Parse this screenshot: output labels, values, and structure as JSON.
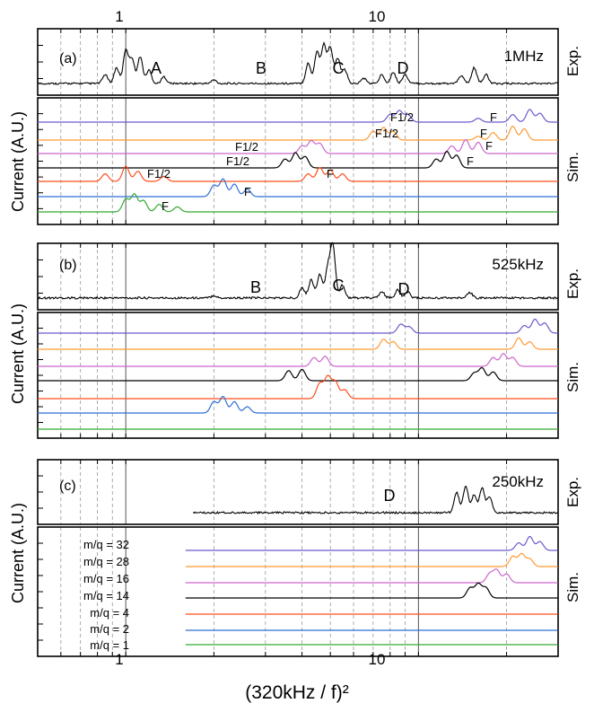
{
  "figure": {
    "xlabel": "(320kHz / f)²",
    "ylabel": "Current (A.U.)",
    "x_ticks_top": [
      "1",
      "10"
    ],
    "x_ticks_bottom": [
      "1",
      "10"
    ],
    "exp_label": "Exp.",
    "sim_label": "Sim.",
    "colors": {
      "m32": "#6a5acd",
      "m28": "#ff9933",
      "m16": "#cc66cc",
      "m14": "#000000",
      "m4": "#ff4d1a",
      "m2": "#2e6fd6",
      "m1": "#33aa33"
    }
  },
  "chart_data": [
    {
      "type": "line",
      "panel": "(a)",
      "frequency": "1MHz",
      "xscale": "log",
      "xlim": [
        0.5,
        30
      ],
      "peak_labels": [
        "A",
        "B",
        "C",
        "D"
      ],
      "series": [
        {
          "name": "Exp.",
          "peaks": [
            [
              0.85,
              0.2
            ],
            [
              0.93,
              0.35
            ],
            [
              1.0,
              0.75
            ],
            [
              1.05,
              0.55
            ],
            [
              1.12,
              0.6
            ],
            [
              1.2,
              0.3
            ],
            [
              1.35,
              0.15
            ],
            [
              2.0,
              0.08
            ],
            [
              4.2,
              0.45
            ],
            [
              4.5,
              0.7
            ],
            [
              4.75,
              0.85
            ],
            [
              5.0,
              0.8
            ],
            [
              5.3,
              0.55
            ],
            [
              5.6,
              0.3
            ],
            [
              6.5,
              0.12
            ],
            [
              7.5,
              0.2
            ],
            [
              8.2,
              0.25
            ],
            [
              9.0,
              0.2
            ],
            [
              14,
              0.18
            ],
            [
              15.5,
              0.35
            ],
            [
              17,
              0.2
            ]
          ]
        },
        {
          "name": "m/q = 32",
          "peaks": [
            [
              8.0,
              0.3
            ],
            [
              8.6,
              0.45
            ],
            [
              9.2,
              0.3
            ],
            [
              16,
              0.15
            ],
            [
              21,
              0.3
            ],
            [
              24,
              0.5
            ],
            [
              26,
              0.35
            ]
          ]
        },
        {
          "name": "m/q = 28",
          "peaks": [
            [
              7.0,
              0.35
            ],
            [
              7.6,
              0.5
            ],
            [
              8.2,
              0.35
            ],
            [
              16,
              0.15
            ],
            [
              18,
              0.3
            ],
            [
              21,
              0.55
            ],
            [
              23,
              0.45
            ]
          ]
        },
        {
          "name": "m/q = 16",
          "peaks": [
            [
              4.0,
              0.3
            ],
            [
              4.3,
              0.5
            ],
            [
              4.6,
              0.4
            ],
            [
              13,
              0.3
            ],
            [
              14.5,
              0.55
            ],
            [
              16,
              0.45
            ]
          ]
        },
        {
          "name": "m/q = 14",
          "peaks": [
            [
              3.5,
              0.35
            ],
            [
              3.8,
              0.6
            ],
            [
              4.1,
              0.45
            ],
            [
              11.5,
              0.35
            ],
            [
              12.5,
              0.65
            ],
            [
              13.5,
              0.5
            ]
          ]
        },
        {
          "name": "m/q = 4",
          "peaks": [
            [
              0.85,
              0.3
            ],
            [
              1.0,
              0.6
            ],
            [
              1.1,
              0.4
            ],
            [
              1.35,
              0.2
            ],
            [
              4.2,
              0.3
            ],
            [
              4.6,
              0.55
            ],
            [
              5.0,
              0.45
            ],
            [
              5.5,
              0.3
            ]
          ]
        },
        {
          "name": "m/q = 2",
          "peaks": [
            [
              2.0,
              0.45
            ],
            [
              2.15,
              0.7
            ],
            [
              2.35,
              0.5
            ],
            [
              2.6,
              0.3
            ]
          ]
        },
        {
          "name": "m/q = 1",
          "peaks": [
            [
              1.0,
              0.5
            ],
            [
              1.07,
              0.7
            ],
            [
              1.15,
              0.45
            ],
            [
              1.3,
              0.3
            ],
            [
              1.5,
              0.2
            ]
          ]
        }
      ],
      "annotations": [
        "F1/2",
        "F",
        "F1/2",
        "F",
        "F1/2",
        "F",
        "F1/2",
        "F",
        "F1/2",
        "F",
        "F",
        "F"
      ]
    },
    {
      "type": "line",
      "panel": "(b)",
      "frequency": "525kHz",
      "xscale": "log",
      "xlim": [
        0.5,
        30
      ],
      "peak_labels": [
        "B",
        "C",
        "D"
      ],
      "series": [
        {
          "name": "Exp.",
          "peaks": [
            [
              2.0,
              0.05
            ],
            [
              4.0,
              0.2
            ],
            [
              4.3,
              0.35
            ],
            [
              4.6,
              0.45
            ],
            [
              4.9,
              0.55
            ],
            [
              5.1,
              1.0
            ],
            [
              5.5,
              0.25
            ],
            [
              7.5,
              0.12
            ],
            [
              8.5,
              0.15
            ],
            [
              9.2,
              0.12
            ],
            [
              15,
              0.1
            ]
          ]
        },
        {
          "name": "m/q = 32",
          "peaks": [
            [
              8.7,
              0.35
            ],
            [
              9.3,
              0.25
            ],
            [
              23,
              0.3
            ],
            [
              25,
              0.55
            ],
            [
              27,
              0.4
            ]
          ]
        },
        {
          "name": "m/q = 28",
          "peaks": [
            [
              7.6,
              0.4
            ],
            [
              8.2,
              0.3
            ],
            [
              22,
              0.45
            ],
            [
              24,
              0.3
            ]
          ]
        },
        {
          "name": "m/q = 16",
          "peaks": [
            [
              4.4,
              0.35
            ],
            [
              4.8,
              0.4
            ],
            [
              18,
              0.35
            ],
            [
              19.5,
              0.5
            ],
            [
              21,
              0.35
            ]
          ]
        },
        {
          "name": "m/q = 14",
          "peaks": [
            [
              3.6,
              0.4
            ],
            [
              4.0,
              0.45
            ],
            [
              15.5,
              0.3
            ],
            [
              16.5,
              0.5
            ],
            [
              18,
              0.35
            ]
          ]
        },
        {
          "name": "m/q = 4",
          "peaks": [
            [
              4.6,
              0.6
            ],
            [
              4.9,
              0.85
            ],
            [
              5.2,
              0.65
            ],
            [
              5.6,
              0.35
            ]
          ]
        },
        {
          "name": "m/q = 2",
          "peaks": [
            [
              2.0,
              0.45
            ],
            [
              2.15,
              0.65
            ],
            [
              2.35,
              0.45
            ],
            [
              2.6,
              0.25
            ]
          ]
        },
        {
          "name": "m/q = 1",
          "peaks": []
        }
      ]
    },
    {
      "type": "line",
      "panel": "(c)",
      "frequency": "250kHz",
      "xscale": "log",
      "xlim": [
        0.5,
        30
      ],
      "peak_labels": [
        "D"
      ],
      "series": [
        {
          "name": "Exp.",
          "peaks": [
            [
              13.5,
              0.45
            ],
            [
              14.5,
              0.6
            ],
            [
              15.5,
              0.4
            ],
            [
              16.5,
              0.55
            ],
            [
              17.5,
              0.35
            ]
          ]
        },
        {
          "name": "m/q = 32",
          "peaks": [
            [
              22,
              0.3
            ],
            [
              24,
              0.55
            ],
            [
              26,
              0.35
            ]
          ]
        },
        {
          "name": "m/q = 28",
          "peaks": [
            [
              21,
              0.4
            ],
            [
              22.5,
              0.5
            ],
            [
              24,
              0.3
            ]
          ]
        },
        {
          "name": "m/q = 16",
          "peaks": [
            [
              17.5,
              0.35
            ],
            [
              18.5,
              0.5
            ],
            [
              20,
              0.35
            ]
          ]
        },
        {
          "name": "m/q = 14",
          "peaks": [
            [
              15,
              0.4
            ],
            [
              16,
              0.55
            ],
            [
              17,
              0.4
            ]
          ]
        },
        {
          "name": "m/q = 4",
          "peaks": []
        },
        {
          "name": "m/q = 2",
          "peaks": []
        },
        {
          "name": "m/q = 1",
          "peaks": []
        }
      ],
      "legend": [
        "m/q = 32",
        "m/q = 28",
        "m/q = 16",
        "m/q = 14",
        "m/q = 4",
        "m/q = 2",
        "m/q = 1"
      ]
    }
  ]
}
